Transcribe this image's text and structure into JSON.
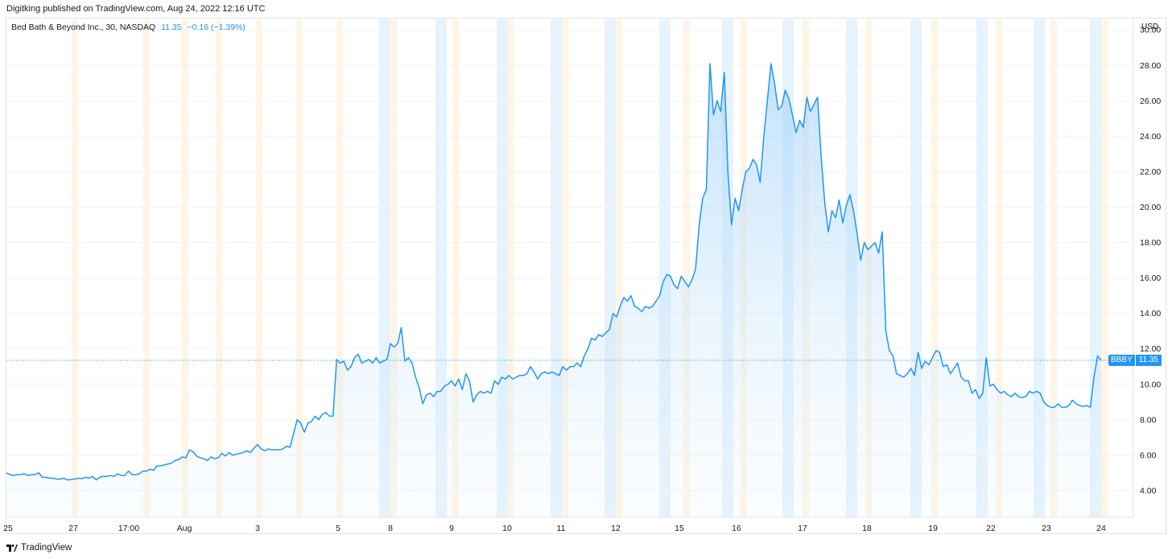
{
  "header": {
    "publish_line": "Digitking published on TradingView.com, Aug 24, 2022 12:16 UTC"
  },
  "legend": {
    "title": "Bed Bath & Beyond Inc., 30, NASDAQ",
    "price": "11.35",
    "change": "−0.16 (−1.39%)"
  },
  "price_tag": {
    "symbol": "BBBY",
    "value": "11.35"
  },
  "footer": {
    "brand": "TradingView"
  },
  "colors": {
    "line": "#2196f3",
    "area_top": "#bbdefb",
    "premarket": "#fff3e0",
    "postmarket": "#e3f2fd",
    "grid": "#f0f3fa",
    "last_price_line": "#2196f3",
    "axis_text": "#131722"
  },
  "chart_data": {
    "type": "area",
    "title": "Bed Bath & Beyond Inc., 30, NASDAQ",
    "xlabel": "",
    "ylabel": "USD",
    "currency_label": "USD",
    "ylim": [
      2.5,
      30.6
    ],
    "y_ticks": [
      "4.00",
      "6.00",
      "8.00",
      "10.00",
      "12.00",
      "14.00",
      "16.00",
      "18.00",
      "20.00",
      "22.00",
      "24.00",
      "26.00",
      "28.00",
      "30.00"
    ],
    "x_ticks": [
      "25",
      "27",
      "17:00",
      "Aug",
      "3",
      "5",
      "8",
      "9",
      "10",
      "11",
      "12",
      "15",
      "16",
      "17",
      "18",
      "19",
      "22",
      "23",
      "24"
    ],
    "last_price": 11.35,
    "grid": true,
    "series": [
      {
        "values": [
          5.0,
          4.9,
          4.85,
          4.9,
          4.9,
          4.95,
          4.85,
          4.9,
          4.9,
          5.0,
          4.75,
          4.75,
          4.7,
          4.7,
          4.65,
          4.65,
          4.7,
          4.6,
          4.62,
          4.65,
          4.7,
          4.68,
          4.75,
          4.7,
          4.8,
          4.6,
          4.75,
          4.8,
          4.8,
          4.85,
          4.8,
          4.95,
          4.85,
          4.85,
          5.1,
          4.9,
          4.9,
          4.95,
          5.1,
          5.1,
          5.2,
          5.15,
          5.4,
          5.4,
          5.45,
          5.5,
          5.55,
          5.7,
          5.75,
          5.9,
          5.85,
          6.3,
          6.2,
          5.95,
          5.85,
          5.8,
          5.7,
          5.9,
          5.8,
          5.85,
          6.1,
          5.95,
          6.15,
          6.0,
          6.05,
          6.1,
          6.15,
          6.25,
          6.15,
          6.4,
          6.6,
          6.35,
          6.25,
          6.35,
          6.3,
          6.3,
          6.3,
          6.35,
          6.5,
          6.45,
          7.2,
          8.0,
          7.8,
          7.3,
          7.8,
          7.9,
          8.2,
          8.0,
          8.3,
          8.4,
          8.2,
          8.2,
          11.4,
          11.2,
          11.3,
          10.8,
          11.0,
          11.5,
          11.7,
          11.2,
          11.3,
          11.4,
          11.2,
          11.5,
          11.2,
          11.3,
          11.4,
          12.3,
          12.1,
          12.3,
          13.2,
          11.3,
          11.5,
          11.2,
          10.4,
          9.8,
          8.9,
          9.4,
          9.5,
          9.3,
          9.6,
          9.6,
          9.9,
          10.0,
          10.2,
          9.9,
          10.3,
          9.7,
          10.6,
          10.2,
          9.0,
          9.4,
          9.6,
          9.5,
          9.6,
          9.5,
          10.2,
          10.0,
          10.4,
          10.3,
          10.5,
          10.3,
          10.4,
          10.5,
          10.5,
          10.6,
          11.0,
          10.7,
          10.3,
          10.6,
          10.7,
          10.6,
          10.7,
          10.6,
          10.5,
          11.0,
          10.8,
          11.0,
          11.0,
          11.2,
          11.0,
          11.6,
          12.0,
          12.6,
          12.5,
          12.8,
          12.7,
          12.9,
          13.1,
          14.0,
          13.8,
          14.4,
          14.9,
          14.7,
          15.0,
          14.4,
          14.3,
          14.1,
          14.4,
          14.3,
          14.4,
          14.7,
          15.0,
          15.8,
          16.2,
          16.1,
          15.6,
          15.4,
          16.1,
          15.8,
          15.5,
          15.9,
          16.5,
          19.0,
          20.5,
          21.0,
          28.1,
          25.2,
          26.0,
          25.4,
          27.6,
          22.0,
          19.0,
          20.5,
          19.8,
          21.0,
          22.0,
          22.2,
          22.7,
          22.4,
          21.4,
          24.0,
          26.0,
          28.1,
          27.0,
          25.5,
          25.7,
          26.6,
          26.1,
          25.2,
          24.2,
          24.9,
          24.5,
          26.2,
          25.4,
          25.8,
          26.2,
          22.8,
          20.2,
          18.6,
          19.8,
          19.4,
          20.4,
          19.1,
          20.1,
          20.7,
          19.8,
          18.5,
          17.0,
          18.0,
          17.6,
          17.8,
          18.0,
          17.4,
          18.6,
          13.0,
          11.9,
          11.6,
          10.6,
          10.5,
          10.4,
          10.6,
          10.9,
          10.5,
          11.8,
          10.9,
          11.3,
          11.1,
          11.5,
          11.9,
          11.8,
          11.0,
          11.1,
          10.6,
          10.9,
          11.2,
          10.4,
          10.2,
          10.2,
          9.5,
          9.7,
          9.2,
          9.5,
          11.5,
          9.9,
          10.0,
          9.7,
          9.5,
          9.6,
          9.4,
          9.3,
          9.5,
          9.3,
          9.25,
          9.3,
          9.6,
          9.5,
          9.6,
          9.5,
          9.0,
          8.8,
          8.7,
          8.7,
          8.9,
          8.7,
          8.7,
          8.8,
          9.1,
          8.9,
          8.8,
          8.75,
          8.8,
          8.7,
          10.4,
          11.6,
          11.35
        ]
      }
    ]
  }
}
